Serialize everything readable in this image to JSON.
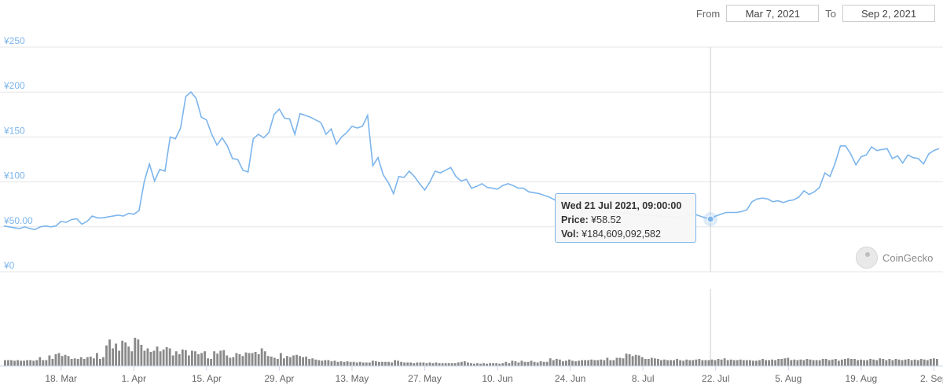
{
  "range": {
    "from_label": "From",
    "from_value": "Mar 7, 2021",
    "to_label": "To",
    "to_value": "Sep 2, 2021"
  },
  "tooltip": {
    "date": "Wed 21 Jul 2021, 09:00:00",
    "price_label": "Price:",
    "price_value": "¥58.52",
    "vol_label": "Vol:",
    "vol_value": "¥184,609,092,582"
  },
  "brand": {
    "name": "CoinGecko",
    "logo_icon": "coingecko-logo-icon"
  },
  "colors": {
    "line": "#7cb5ec",
    "bars": "#8a8a8a",
    "grid": "#e6e6e6",
    "crosshair": "#cccccc",
    "axis_text": "#7cb5ec"
  },
  "chart_data": {
    "type": "line",
    "y_ticks": [
      "¥0",
      "¥50.00",
      "¥100",
      "¥150",
      "¥200",
      "¥250"
    ],
    "ylim": [
      0,
      250
    ],
    "xlim": [
      "2021-03-07",
      "2021-09-03"
    ],
    "x_ticks": [
      {
        "date": "2021-03-18",
        "label": "18. Mar"
      },
      {
        "date": "2021-04-01",
        "label": "1. Apr"
      },
      {
        "date": "2021-04-15",
        "label": "15. Apr"
      },
      {
        "date": "2021-04-29",
        "label": "29. Apr"
      },
      {
        "date": "2021-05-13",
        "label": "13. May"
      },
      {
        "date": "2021-05-27",
        "label": "27. May"
      },
      {
        "date": "2021-06-10",
        "label": "10. Jun"
      },
      {
        "date": "2021-06-24",
        "label": "24. Jun"
      },
      {
        "date": "2021-07-08",
        "label": "8. Jul"
      },
      {
        "date": "2021-07-22",
        "label": "22. Jul"
      },
      {
        "date": "2021-08-05",
        "label": "5. Aug"
      },
      {
        "date": "2021-08-19",
        "label": "19. Aug"
      },
      {
        "date": "2021-09-02",
        "label": "2. Sep"
      }
    ],
    "highlight_date": "2021-07-21",
    "series": [
      {
        "points": [
          [
            "2021-03-07",
            51
          ],
          [
            "2021-03-08",
            50
          ],
          [
            "2021-03-09",
            49
          ],
          [
            "2021-03-10",
            48
          ],
          [
            "2021-03-11",
            50
          ],
          [
            "2021-03-12",
            48
          ],
          [
            "2021-03-13",
            47
          ],
          [
            "2021-03-14",
            50
          ],
          [
            "2021-03-15",
            51
          ],
          [
            "2021-03-16",
            50
          ],
          [
            "2021-03-17",
            51
          ],
          [
            "2021-03-18",
            56
          ],
          [
            "2021-03-19",
            55
          ],
          [
            "2021-03-20",
            58
          ],
          [
            "2021-03-21",
            59
          ],
          [
            "2021-03-22",
            53
          ],
          [
            "2021-03-23",
            56
          ],
          [
            "2021-03-24",
            62
          ],
          [
            "2021-03-25",
            60
          ],
          [
            "2021-03-26",
            60
          ],
          [
            "2021-03-27",
            61
          ],
          [
            "2021-03-28",
            62
          ],
          [
            "2021-03-29",
            63
          ],
          [
            "2021-03-30",
            62
          ],
          [
            "2021-03-31",
            65
          ],
          [
            "2021-04-01",
            64
          ],
          [
            "2021-04-02",
            68
          ],
          [
            "2021-04-03",
            100
          ],
          [
            "2021-04-04",
            120
          ],
          [
            "2021-04-05",
            101
          ],
          [
            "2021-04-06",
            114
          ],
          [
            "2021-04-07",
            112
          ],
          [
            "2021-04-08",
            150
          ],
          [
            "2021-04-09",
            148
          ],
          [
            "2021-04-10",
            160
          ],
          [
            "2021-04-11",
            195
          ],
          [
            "2021-04-12",
            200
          ],
          [
            "2021-04-13",
            193
          ],
          [
            "2021-04-14",
            172
          ],
          [
            "2021-04-15",
            169
          ],
          [
            "2021-04-16",
            153
          ],
          [
            "2021-04-17",
            141
          ],
          [
            "2021-04-18",
            149
          ],
          [
            "2021-04-19",
            140
          ],
          [
            "2021-04-20",
            126
          ],
          [
            "2021-04-21",
            125
          ],
          [
            "2021-04-22",
            113
          ],
          [
            "2021-04-23",
            111
          ],
          [
            "2021-04-24",
            148
          ],
          [
            "2021-04-25",
            153
          ],
          [
            "2021-04-26",
            149
          ],
          [
            "2021-04-27",
            155
          ],
          [
            "2021-04-28",
            175
          ],
          [
            "2021-04-29",
            181
          ],
          [
            "2021-04-30",
            171
          ],
          [
            "2021-05-01",
            170
          ],
          [
            "2021-05-02",
            153
          ],
          [
            "2021-05-03",
            176
          ],
          [
            "2021-05-04",
            174
          ],
          [
            "2021-05-05",
            172
          ],
          [
            "2021-05-06",
            169
          ],
          [
            "2021-05-07",
            166
          ],
          [
            "2021-05-08",
            153
          ],
          [
            "2021-05-09",
            159
          ],
          [
            "2021-05-10",
            142
          ],
          [
            "2021-05-11",
            150
          ],
          [
            "2021-05-12",
            155
          ],
          [
            "2021-05-13",
            162
          ],
          [
            "2021-05-14",
            160
          ],
          [
            "2021-05-15",
            162
          ],
          [
            "2021-05-16",
            174
          ],
          [
            "2021-05-17",
            118
          ],
          [
            "2021-05-18",
            127
          ],
          [
            "2021-05-19",
            108
          ],
          [
            "2021-05-20",
            99
          ],
          [
            "2021-05-21",
            87
          ],
          [
            "2021-05-22",
            106
          ],
          [
            "2021-05-23",
            105
          ],
          [
            "2021-05-24",
            112
          ],
          [
            "2021-05-25",
            106
          ],
          [
            "2021-05-26",
            98
          ],
          [
            "2021-05-27",
            91
          ],
          [
            "2021-05-28",
            100
          ],
          [
            "2021-05-29",
            112
          ],
          [
            "2021-05-30",
            110
          ],
          [
            "2021-05-31",
            113
          ],
          [
            "2021-06-01",
            116
          ],
          [
            "2021-06-02",
            106
          ],
          [
            "2021-06-03",
            101
          ],
          [
            "2021-06-04",
            103
          ],
          [
            "2021-06-05",
            93
          ],
          [
            "2021-06-06",
            95
          ],
          [
            "2021-06-07",
            98
          ],
          [
            "2021-06-08",
            94
          ],
          [
            "2021-06-09",
            93
          ],
          [
            "2021-06-10",
            92
          ],
          [
            "2021-06-11",
            96
          ],
          [
            "2021-06-12",
            98
          ],
          [
            "2021-06-13",
            96
          ],
          [
            "2021-06-14",
            93
          ],
          [
            "2021-06-15",
            93
          ],
          [
            "2021-06-16",
            89
          ],
          [
            "2021-06-17",
            88
          ],
          [
            "2021-06-18",
            87
          ],
          [
            "2021-06-19",
            85
          ],
          [
            "2021-06-20",
            83
          ],
          [
            "2021-06-21",
            80
          ],
          [
            "2021-06-22",
            76
          ],
          [
            "2021-06-23",
            76
          ],
          [
            "2021-06-24",
            74
          ],
          [
            "2021-06-25",
            73
          ],
          [
            "2021-06-26",
            72
          ],
          [
            "2021-06-27",
            71
          ],
          [
            "2021-06-28",
            70
          ],
          [
            "2021-06-29",
            69
          ],
          [
            "2021-06-30",
            68
          ],
          [
            "2021-07-01",
            67
          ],
          [
            "2021-07-02",
            66
          ],
          [
            "2021-07-03",
            66
          ],
          [
            "2021-07-04",
            65
          ],
          [
            "2021-07-05",
            65
          ],
          [
            "2021-07-06",
            64
          ],
          [
            "2021-07-07",
            64
          ],
          [
            "2021-07-08",
            63
          ],
          [
            "2021-07-09",
            63
          ],
          [
            "2021-07-10",
            62
          ],
          [
            "2021-07-11",
            62
          ],
          [
            "2021-07-12",
            61
          ],
          [
            "2021-07-13",
            61
          ],
          [
            "2021-07-14",
            61
          ],
          [
            "2021-07-15",
            60
          ],
          [
            "2021-07-16",
            60
          ],
          [
            "2021-07-17",
            63
          ],
          [
            "2021-07-18",
            64
          ],
          [
            "2021-07-19",
            62
          ],
          [
            "2021-07-20",
            60
          ],
          [
            "2021-07-21",
            58.52
          ],
          [
            "2021-07-22",
            62
          ],
          [
            "2021-07-23",
            64
          ],
          [
            "2021-07-24",
            66
          ],
          [
            "2021-07-25",
            66
          ],
          [
            "2021-07-26",
            66
          ],
          [
            "2021-07-27",
            67
          ],
          [
            "2021-07-28",
            69
          ],
          [
            "2021-07-29",
            78
          ],
          [
            "2021-07-30",
            81
          ],
          [
            "2021-07-31",
            82
          ],
          [
            "2021-08-01",
            81
          ],
          [
            "2021-08-02",
            78
          ],
          [
            "2021-08-03",
            79
          ],
          [
            "2021-08-04",
            77
          ],
          [
            "2021-08-05",
            79
          ],
          [
            "2021-08-06",
            80
          ],
          [
            "2021-08-07",
            83
          ],
          [
            "2021-08-08",
            90
          ],
          [
            "2021-08-09",
            86
          ],
          [
            "2021-08-10",
            89
          ],
          [
            "2021-08-11",
            94
          ],
          [
            "2021-08-12",
            110
          ],
          [
            "2021-08-13",
            106
          ],
          [
            "2021-08-14",
            121
          ],
          [
            "2021-08-15",
            140
          ],
          [
            "2021-08-16",
            140
          ],
          [
            "2021-08-17",
            131
          ],
          [
            "2021-08-18",
            119
          ],
          [
            "2021-08-19",
            128
          ],
          [
            "2021-08-20",
            130
          ],
          [
            "2021-08-21",
            139
          ],
          [
            "2021-08-22",
            135
          ],
          [
            "2021-08-23",
            136
          ],
          [
            "2021-08-24",
            137
          ],
          [
            "2021-08-25",
            126
          ],
          [
            "2021-08-26",
            129
          ],
          [
            "2021-08-27",
            121
          ],
          [
            "2021-08-28",
            130
          ],
          [
            "2021-08-29",
            127
          ],
          [
            "2021-08-30",
            126
          ],
          [
            "2021-08-31",
            120
          ],
          [
            "2021-09-01",
            131
          ],
          [
            "2021-09-02",
            135
          ],
          [
            "2021-09-03",
            137
          ]
        ]
      }
    ],
    "volume_relative": [
      0.1,
      0.1,
      0.1,
      0.09,
      0.1,
      0.09,
      0.09,
      0.1,
      0.1,
      0.09,
      0.1,
      0.15,
      0.1,
      0.1,
      0.18,
      0.12,
      0.2,
      0.22,
      0.17,
      0.19,
      0.17,
      0.12,
      0.13,
      0.12,
      0.15,
      0.12,
      0.15,
      0.16,
      0.13,
      0.22,
      0.12,
      0.15,
      0.35,
      0.45,
      0.3,
      0.38,
      0.26,
      0.43,
      0.4,
      0.33,
      0.25,
      0.48,
      0.45,
      0.36,
      0.26,
      0.3,
      0.24,
      0.26,
      0.33,
      0.25,
      0.28,
      0.32,
      0.3,
      0.18,
      0.25,
      0.2,
      0.28,
      0.27,
      0.18,
      0.26,
      0.25,
      0.2,
      0.22,
      0.25,
      0.13,
      0.12,
      0.25,
      0.21,
      0.26,
      0.27,
      0.18,
      0.14,
      0.15,
      0.22,
      0.2,
      0.17,
      0.23,
      0.22,
      0.22,
      0.24,
      0.2,
      0.3,
      0.25,
      0.17,
      0.16,
      0.14,
      0.12,
      0.22,
      0.13,
      0.17,
      0.15,
      0.18,
      0.19,
      0.17,
      0.15,
      0.16,
      0.12,
      0.13,
      0.11,
      0.1,
      0.09,
      0.1,
      0.1,
      0.08,
      0.09,
      0.07,
      0.08,
      0.07,
      0.08,
      0.07,
      0.07,
      0.06,
      0.07,
      0.06,
      0.06,
      0.06,
      0.09,
      0.08,
      0.07,
      0.07,
      0.07,
      0.07,
      0.06,
      0.1,
      0.09,
      0.07,
      0.06,
      0.06,
      0.06,
      0.05,
      0.06,
      0.06,
      0.06,
      0.05,
      0.06,
      0.05,
      0.06,
      0.05,
      0.05,
      0.05,
      0.05,
      0.05,
      0.05,
      0.06,
      0.07,
      0.08,
      0.06,
      0.05,
      0.04,
      0.05,
      0.04,
      0.05,
      0.04,
      0.05,
      0.05,
      0.05,
      0.04,
      0.05,
      0.07,
      0.05,
      0.09,
      0.08,
      0.06,
      0.09,
      0.07,
      0.07,
      0.09,
      0.07,
      0.06,
      0.08,
      0.07,
      0.07,
      0.13,
      0.1,
      0.12,
      0.11,
      0.08,
      0.09,
      0.11,
      0.09,
      0.08,
      0.09,
      0.1,
      0.1,
      0.1,
      0.11,
      0.1,
      0.1,
      0.11,
      0.1,
      0.14,
      0.1,
      0.1,
      0.14,
      0.14,
      0.13,
      0.21,
      0.2,
      0.17,
      0.19,
      0.18,
      0.15,
      0.12,
      0.12,
      0.14,
      0.13,
      0.12,
      0.1,
      0.11,
      0.1,
      0.1,
      0.1,
      0.12,
      0.1,
      0.09,
      0.11,
      0.1,
      0.1,
      0.11,
      0.12,
      0.1,
      0.1,
      0.1,
      0.11,
      0.1,
      0.12,
      0.11,
      0.13,
      0.1,
      0.11,
      0.1,
      0.1,
      0.11,
      0.1,
      0.1,
      0.1,
      0.09,
      0.09,
      0.1,
      0.12,
      0.1,
      0.1,
      0.11,
      0.1,
      0.12,
      0.12,
      0.13,
      0.14,
      0.1,
      0.11,
      0.1,
      0.11,
      0.1,
      0.12,
      0.11,
      0.1,
      0.1,
      0.1,
      0.12,
      0.12,
      0.1,
      0.11,
      0.12,
      0.09,
      0.11,
      0.12,
      0.13,
      0.12,
      0.12,
      0.1,
      0.11,
      0.1,
      0.1,
      0.12,
      0.11,
      0.1,
      0.13,
      0.12,
      0.1,
      0.12,
      0.1,
      0.12,
      0.11,
      0.1,
      0.11,
      0.12,
      0.1,
      0.11,
      0.1,
      0.12,
      0.11,
      0.1,
      0.12,
      0.13,
      0.12
    ]
  }
}
